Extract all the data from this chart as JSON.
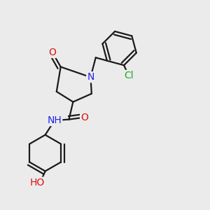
{
  "bg_color": "#ebebeb",
  "bond_color": "#1a1a1a",
  "bond_width": 1.6,
  "atom_colors": {
    "O": "#dd1111",
    "N": "#2222ee",
    "Cl": "#22aa22",
    "C": "#1a1a1a"
  },
  "font_size_main": 10,
  "figsize": [
    3.0,
    3.0
  ],
  "dpi": 100
}
